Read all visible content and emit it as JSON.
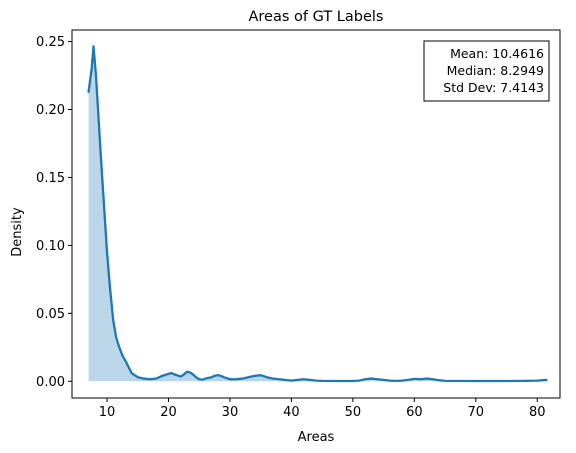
{
  "chart_data": {
    "type": "area",
    "title": "Areas of GT Labels",
    "xlabel": "Areas",
    "ylabel": "Density",
    "xlim": [
      4.3,
      83.7
    ],
    "ylim": [
      -0.0123,
      0.2585
    ],
    "x_ticks": [
      10,
      20,
      30,
      40,
      50,
      60,
      70,
      80
    ],
    "x_tick_labels": [
      "10",
      "20",
      "30",
      "40",
      "50",
      "60",
      "70",
      "80"
    ],
    "y_ticks": [
      0.0,
      0.05,
      0.1,
      0.15,
      0.2,
      0.25
    ],
    "y_tick_labels": [
      "0.00",
      "0.05",
      "0.10",
      "0.15",
      "0.20",
      "0.25"
    ],
    "grid": false,
    "line_color": "#1f77b4",
    "fill_color": "#1f77b4",
    "fill_alpha": 0.3,
    "series": [
      {
        "x": [
          7.0,
          7.5,
          7.8,
          8.2,
          8.6,
          9.0,
          9.5,
          10.0,
          10.5,
          11.0,
          11.5,
          12.0,
          12.5,
          13.0,
          14.0,
          15.0,
          16.0,
          17.0,
          18.0,
          19.0,
          20.0,
          20.5,
          21.0,
          22.0,
          22.5,
          23.0,
          23.5,
          24.0,
          24.5,
          25.0,
          25.5,
          26.0,
          27.0,
          27.5,
          28.0,
          28.5,
          29.0,
          30.0,
          31.0,
          32.0,
          33.0,
          34.0,
          35.0,
          36.0,
          37.0,
          38.0,
          39.0,
          40.0,
          41.0,
          42.0,
          43.0,
          44.0,
          45.0,
          47.0,
          50.0,
          51.0,
          52.0,
          53.0,
          54.0,
          55.0,
          56.0,
          57.0,
          58.0,
          59.0,
          60.0,
          61.0,
          62.0,
          63.0,
          64.0,
          65.0,
          70.0,
          75.0,
          78.0,
          80.0,
          81.5
        ],
        "y": [
          0.213,
          0.23,
          0.2465,
          0.225,
          0.195,
          0.165,
          0.13,
          0.095,
          0.068,
          0.045,
          0.032,
          0.025,
          0.019,
          0.015,
          0.006,
          0.003,
          0.002,
          0.0015,
          0.002,
          0.004,
          0.0055,
          0.006,
          0.005,
          0.0035,
          0.005,
          0.007,
          0.0065,
          0.005,
          0.003,
          0.0015,
          0.0012,
          0.002,
          0.003,
          0.004,
          0.0045,
          0.004,
          0.003,
          0.0015,
          0.0015,
          0.002,
          0.003,
          0.004,
          0.0045,
          0.003,
          0.002,
          0.0015,
          0.001,
          0.0005,
          0.001,
          0.0015,
          0.001,
          0.0005,
          0.0003,
          0.0002,
          0.0002,
          0.0005,
          0.0015,
          0.002,
          0.0015,
          0.001,
          0.0005,
          0.0003,
          0.0005,
          0.001,
          0.0018,
          0.0015,
          0.002,
          0.0015,
          0.0008,
          0.0003,
          0.0002,
          0.0002,
          0.0003,
          0.0005,
          0.001
        ]
      }
    ],
    "stats_box": {
      "lines": [
        "Mean: 10.4616",
        "Median: 8.2949",
        "Std Dev: 7.4143"
      ],
      "placement": "top-right"
    }
  }
}
